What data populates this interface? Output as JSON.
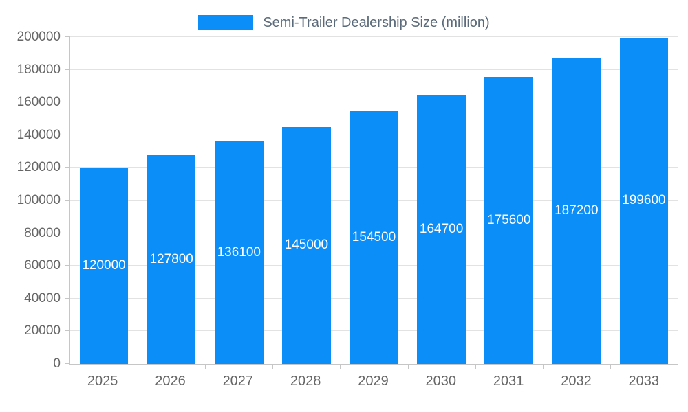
{
  "chart": {
    "colors": {
      "bar": "#0c8ef8",
      "axis": "#c6c6c6",
      "grid": "#e2e2e2",
      "tick_text": "#666666",
      "title_text": "#5a6a7a",
      "bar_label": "#ffffff"
    }
  },
  "chart_data": {
    "type": "bar",
    "title": "Semi-Trailer Dealership Size (million)",
    "categories": [
      "2025",
      "2026",
      "2027",
      "2028",
      "2029",
      "2030",
      "2031",
      "2032",
      "2033"
    ],
    "values": [
      120000,
      127800,
      136100,
      145000,
      154500,
      164700,
      175600,
      187200,
      199600
    ],
    "xlabel": "",
    "ylabel": "",
    "ylim": [
      0,
      200000
    ],
    "ytick_interval": 20000,
    "grid": true,
    "legend_position": "top",
    "bar_value_labels": "centered-inside-white"
  }
}
